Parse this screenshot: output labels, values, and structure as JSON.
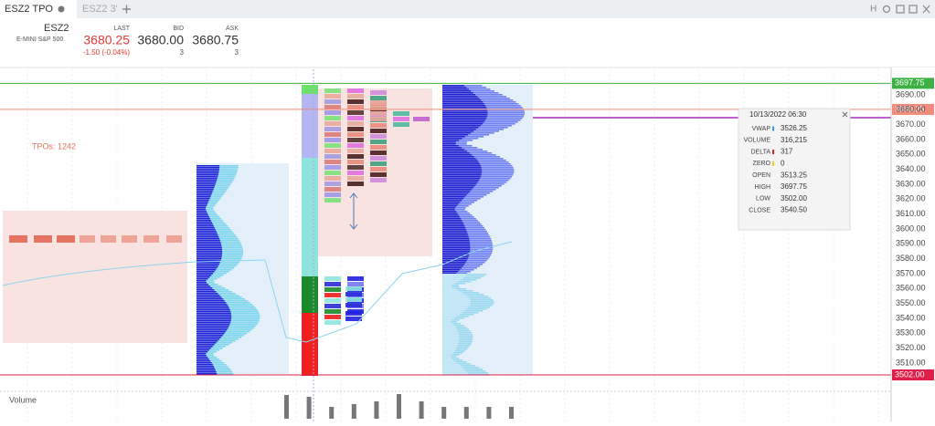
{
  "tabs": [
    {
      "label": "ESZ2 TPO"
    },
    {
      "label": "ESZ2 3'"
    }
  ],
  "window_buttons": [
    "H"
  ],
  "quote": {
    "symbol": "ESZ2",
    "description": "E-MINI S&P 500",
    "last": {
      "label": "LAST",
      "value": "3680.25",
      "change": "-1.50 (-0.04%)"
    },
    "bid": {
      "label": "BID",
      "value": "3680.00",
      "size": "3"
    },
    "ask": {
      "label": "ASK",
      "value": "3680.75",
      "size": "3"
    }
  },
  "chart": {
    "annotation": "TPOs: 1242",
    "price_axis": [
      "3690.00",
      "3680.00",
      "3670.00",
      "3660.00",
      "3650.00",
      "3640.00",
      "3630.00",
      "3620.00",
      "3610.00",
      "3600.00",
      "3590.00",
      "3580.00",
      "3570.00",
      "3560.00",
      "3550.00",
      "3540.00",
      "3530.00",
      "3520.00",
      "3510.00"
    ],
    "price_tags": [
      "3697.75",
      "3680.25",
      "3502.00"
    ],
    "tooltip": {
      "timestamp": "10/13/2022 06:30",
      "rows": [
        {
          "label": "VWAP",
          "value": "3526.25"
        },
        {
          "label": "VOLUME",
          "value": "316,215"
        },
        {
          "label": "DELTA",
          "value": "317"
        },
        {
          "label": "ZERO",
          "value": "0"
        },
        {
          "label": "OPEN",
          "value": "3513.25"
        },
        {
          "label": "HIGH",
          "value": "3697.75"
        },
        {
          "label": "LOW",
          "value": "3502.00"
        },
        {
          "label": "CLOSE",
          "value": "3540.50"
        }
      ]
    }
  },
  "volume_panel": {
    "title": "Volume"
  }
}
